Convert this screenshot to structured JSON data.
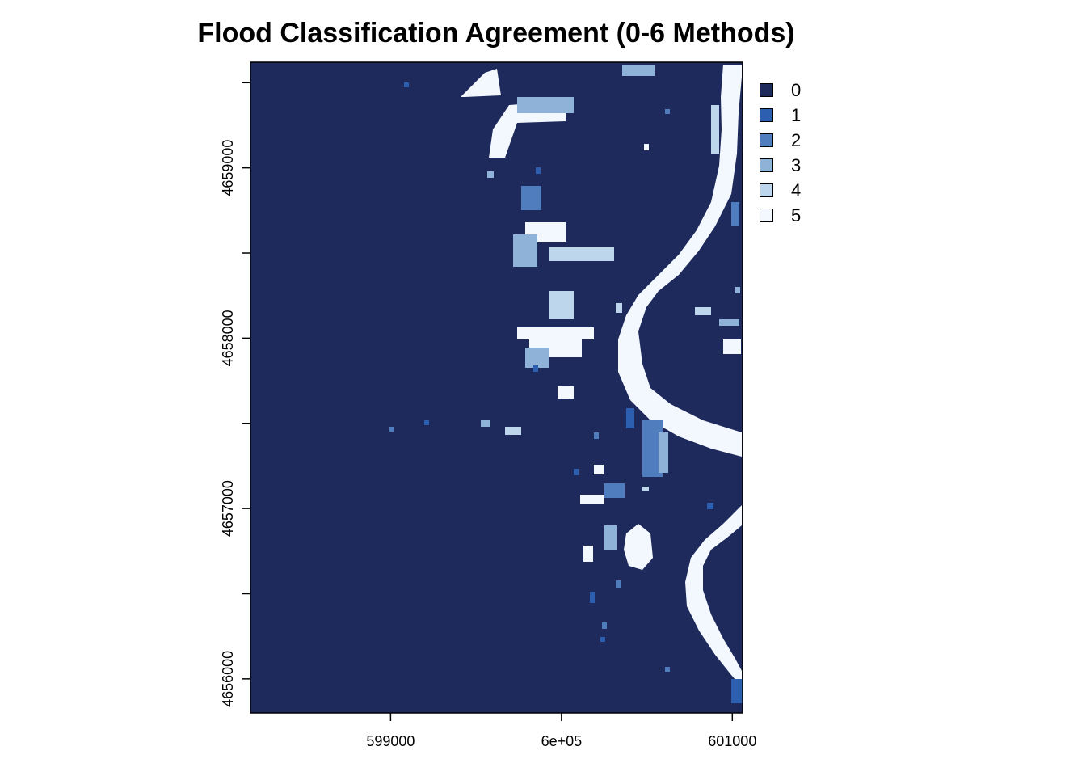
{
  "chart_data": {
    "type": "raster-map",
    "title": "Flood Classification Agreement (0-6 Methods)",
    "x_ticks": [
      {
        "value": 599000,
        "label": "599000"
      },
      {
        "value": 600000,
        "label": "6e+05"
      },
      {
        "value": 601000,
        "label": "601000"
      }
    ],
    "y_ticks": [
      {
        "value": 4656000,
        "label": "4656000"
      },
      {
        "value": 4657000,
        "label": "4657000"
      },
      {
        "value": 4658000,
        "label": "4658000"
      },
      {
        "value": 4659000,
        "label": "4659000"
      }
    ],
    "y_minor_ticks": [
      4656500,
      4657500,
      4658500,
      4659500
    ],
    "xlim": [
      598180,
      601060
    ],
    "ylim": [
      4655800,
      4659620
    ],
    "legend": [
      {
        "label": "0",
        "color": "#1e2a5c"
      },
      {
        "label": "1",
        "color": "#2c5fb0"
      },
      {
        "label": "2",
        "color": "#4f7dbd"
      },
      {
        "label": "3",
        "color": "#8fb3d8"
      },
      {
        "label": "4",
        "color": "#bdd6ec"
      },
      {
        "label": "5",
        "color": "#f2f8fd"
      }
    ],
    "legend_position": "right"
  }
}
